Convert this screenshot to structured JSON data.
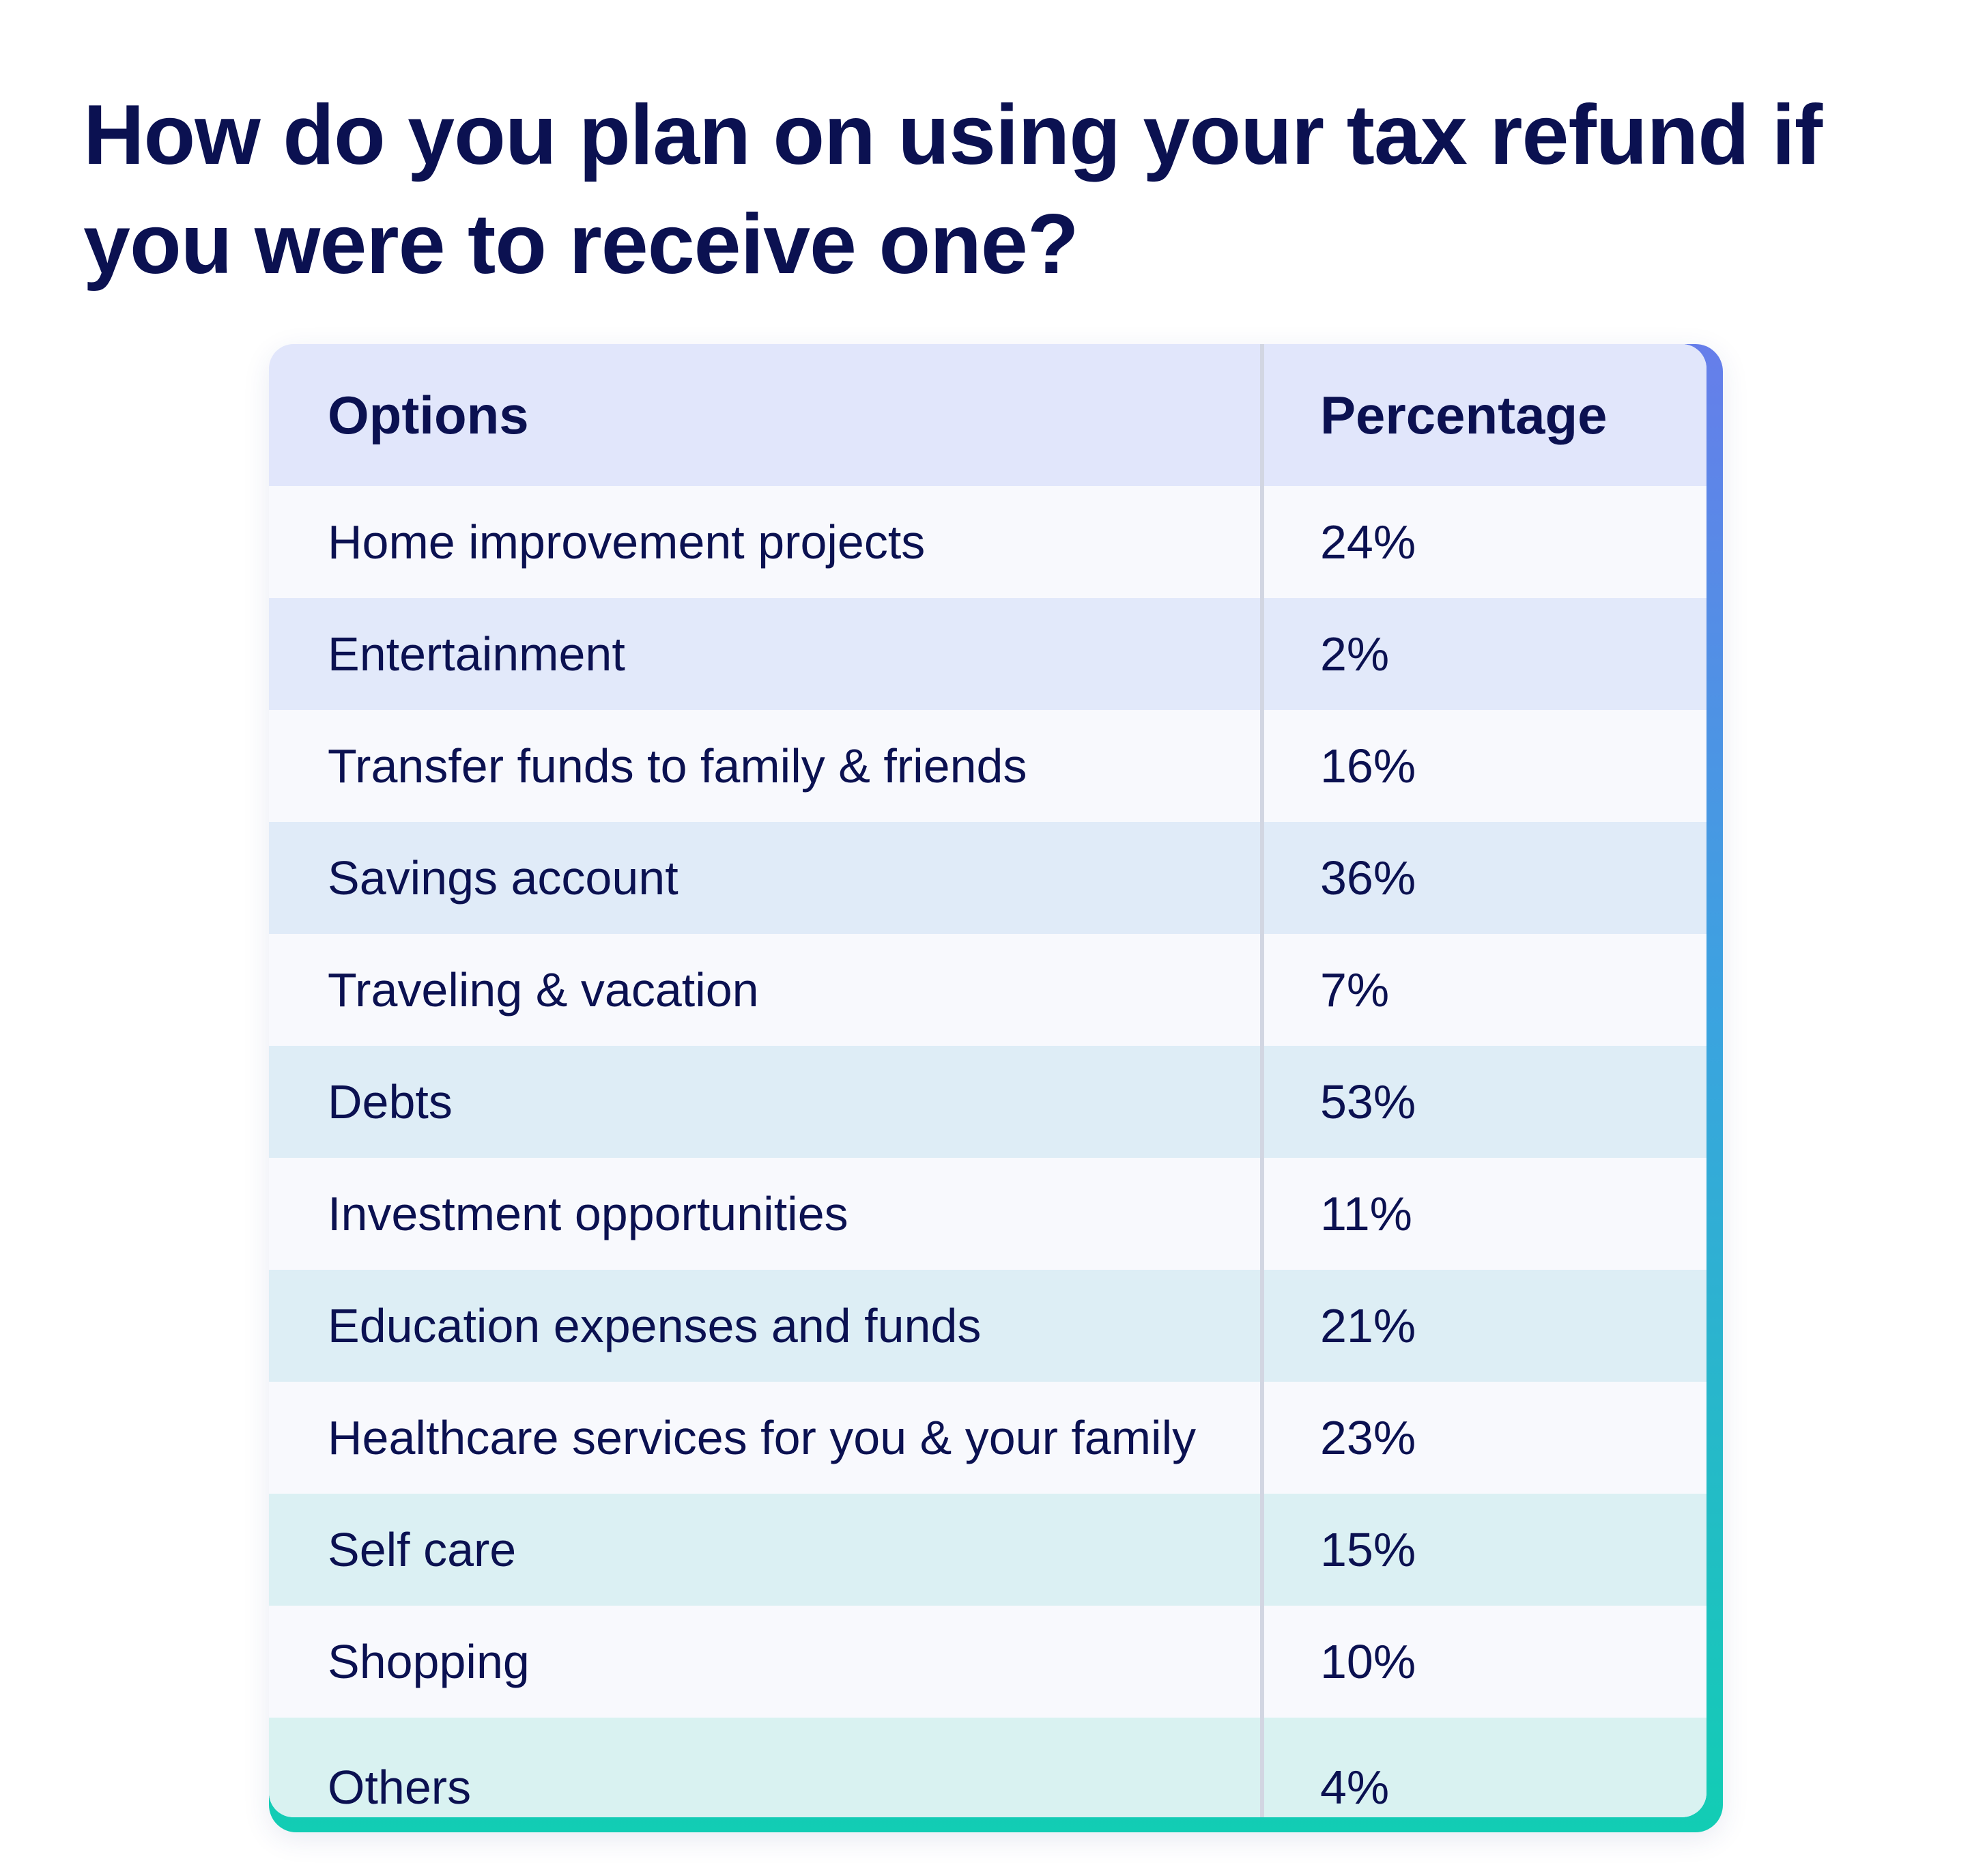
{
  "title": "How do you plan on using your tax refund if you were to receive one?",
  "chart_data": {
    "type": "table",
    "columns": [
      "Options",
      "Percentage"
    ],
    "rows": [
      {
        "option": "Home improvement projects",
        "percentage": "24%"
      },
      {
        "option": "Entertainment",
        "percentage": "2%"
      },
      {
        "option": "Transfer funds to family & friends",
        "percentage": "16%"
      },
      {
        "option": "Savings account",
        "percentage": "36%"
      },
      {
        "option": "Traveling & vacation",
        "percentage": "7%"
      },
      {
        "option": "Debts",
        "percentage": "53%"
      },
      {
        "option": "Investment opportunities",
        "percentage": "11%"
      },
      {
        "option": "Education expenses and funds",
        "percentage": "21%"
      },
      {
        "option": "Healthcare services for you & your family",
        "percentage": "23%"
      },
      {
        "option": "Self care",
        "percentage": "15%"
      },
      {
        "option": "Shopping",
        "percentage": "10%"
      },
      {
        "option": "Others",
        "percentage": "4%"
      }
    ]
  },
  "colors": {
    "text": "#0b1151",
    "header_bg": "#e1e6fb",
    "row_light": "#f8f9fd",
    "row_tint_start": "#e2e9fa",
    "row_tint_end": "#d9f2f1",
    "accent_top": "#667eea",
    "accent_bottom": "#12cdb4",
    "divider": "#d2d6e2"
  }
}
